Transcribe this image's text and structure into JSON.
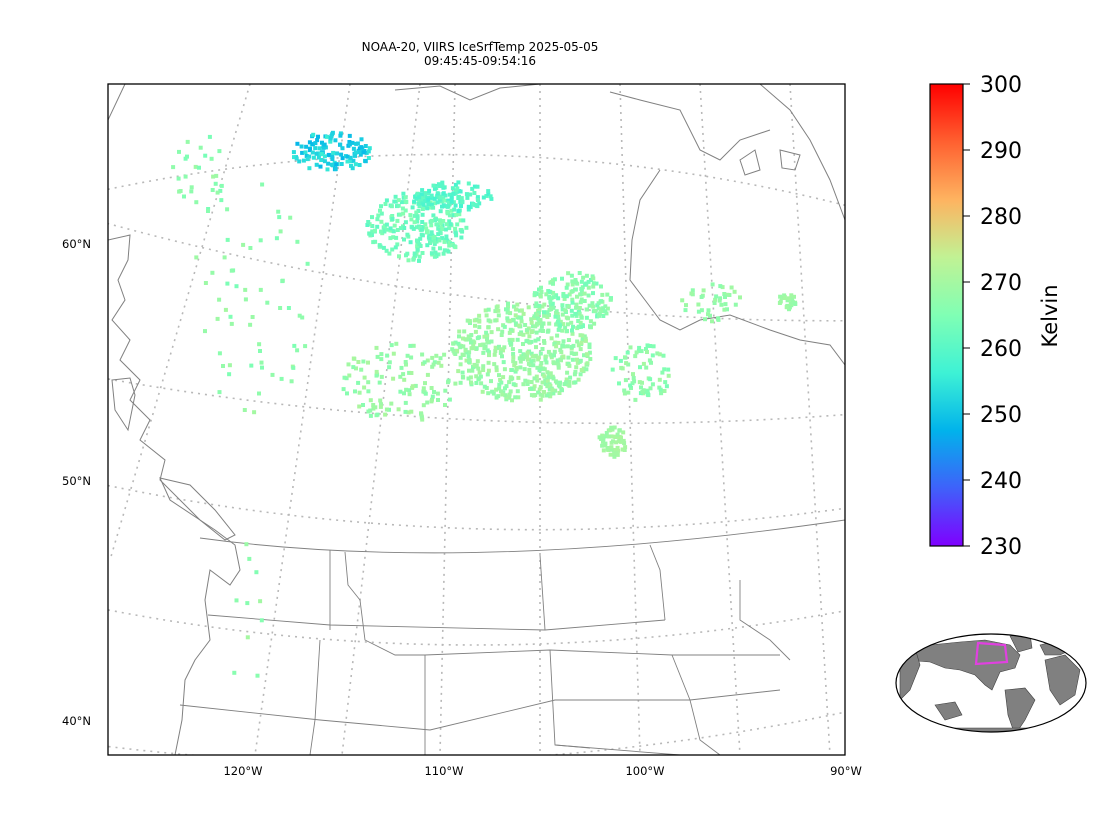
{
  "title": {
    "line1": "NOAA-20, VIIRS IceSrfTemp 2025-05-05",
    "line2": "09:45:45-09:54:16"
  },
  "axes": {
    "lat_labels": [
      "60°N",
      "50°N",
      "40°N"
    ],
    "lon_labels": [
      "120°W",
      "110°W",
      "100°W",
      "90°W"
    ]
  },
  "colorbar": {
    "label": "Kelvin",
    "ticks": [
      "300",
      "290",
      "280",
      "270",
      "260",
      "250",
      "240",
      "230"
    ],
    "min": 230,
    "max": 300,
    "colormap": "rainbow",
    "colors": [
      "#7f00ff",
      "#3f61fa",
      "#01b3eb",
      "#3ef2d5",
      "#80ffb4",
      "#c1f294",
      "#feb360",
      "#ff6030",
      "#ff0000"
    ]
  },
  "inset": {
    "land_color": "#808080",
    "highlight_color": "#e040e0"
  },
  "map": {
    "border_color": "#808080",
    "grid_color": "#b0b0b0"
  }
}
